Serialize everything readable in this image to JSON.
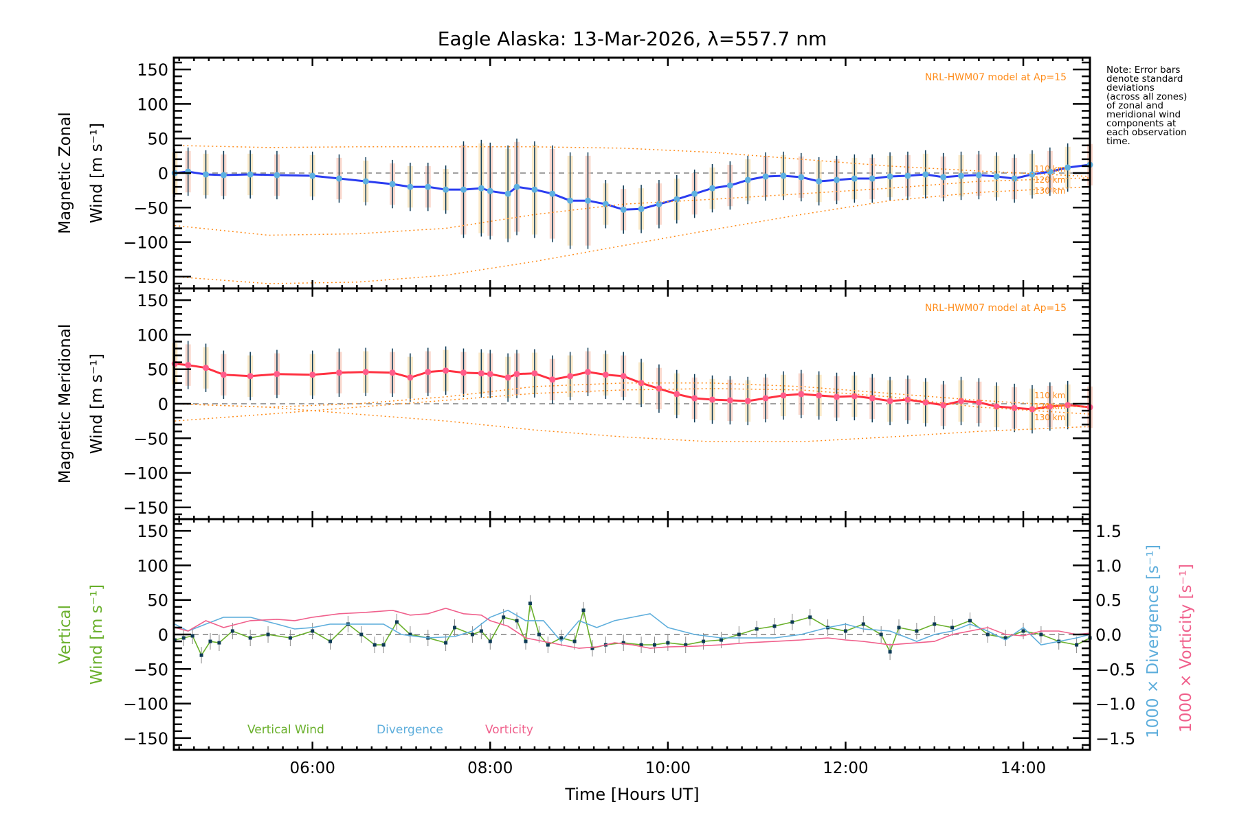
{
  "chart_data": {
    "type": "line",
    "title": "Eagle Alaska: 13-Mar-2026, λ=557.7 nm",
    "xlabel": "Time [Hours UT]",
    "xlim": [
      4.44,
      14.75
    ],
    "x_ticks": [
      6,
      8,
      10,
      12,
      14
    ],
    "x_tick_labels": [
      "06:00",
      "08:00",
      "10:00",
      "12:00",
      "14:00"
    ],
    "note": [
      "Note: Error bars",
      "denote standard",
      "deviations",
      "(across all zones)",
      "of zonal and",
      "meridional wind",
      "components at",
      "each observation",
      "time."
    ],
    "panels": [
      {
        "name": "zonal",
        "ylabel_line1": "Magnetic Zonal",
        "ylabel_line2": "Wind [m s⁻¹]",
        "ylim": [
          -167,
          167
        ],
        "y_ticks": [
          -150,
          -100,
          -50,
          0,
          50,
          100,
          150
        ],
        "model_label": "NRL-HWM07 model at Ap=15",
        "altitude_labels": [
          "110 km",
          "120 km",
          "130 km"
        ],
        "series": [
          {
            "name": "Zonal wind (mean)",
            "color": "#2a3cf0",
            "marker_color": "#5eb0e0",
            "x": [
              4.45,
              4.6,
              4.8,
              5.0,
              5.3,
              5.6,
              6.0,
              6.3,
              6.6,
              6.9,
              7.1,
              7.3,
              7.5,
              7.7,
              7.9,
              8.0,
              8.2,
              8.3,
              8.5,
              8.7,
              8.9,
              9.1,
              9.3,
              9.5,
              9.7,
              9.9,
              10.1,
              10.3,
              10.5,
              10.7,
              10.9,
              11.1,
              11.3,
              11.5,
              11.7,
              11.9,
              12.1,
              12.3,
              12.5,
              12.7,
              12.9,
              13.1,
              13.3,
              13.5,
              13.7,
              13.9,
              14.1,
              14.3,
              14.5,
              14.75
            ],
            "y": [
              0,
              2,
              -2,
              -3,
              -2,
              -3,
              -4,
              -8,
              -12,
              -16,
              -20,
              -20,
              -24,
              -24,
              -22,
              -26,
              -30,
              -20,
              -24,
              -30,
              -40,
              -40,
              -45,
              -53,
              -52,
              -45,
              -38,
              -30,
              -22,
              -18,
              -10,
              -5,
              -4,
              -6,
              -12,
              -10,
              -8,
              -8,
              -5,
              -4,
              -2,
              -6,
              -4,
              -3,
              -5,
              -8,
              -2,
              2,
              8,
              12
            ]
          },
          {
            "name": "HWM07 110 km",
            "color": "#ff8c1a",
            "style": "dotted",
            "x": [
              4.45,
              5.5,
              6.5,
              7.5,
              8.5,
              9.5,
              10.5,
              11.5,
              12.5,
              13.5,
              14.75
            ],
            "y": [
              40,
              37,
              38,
              38,
              38,
              36,
              30,
              20,
              10,
              3,
              -5
            ]
          },
          {
            "name": "HWM07 120 km",
            "color": "#ff8c1a",
            "style": "dotted",
            "x": [
              4.45,
              5.5,
              6.5,
              7.5,
              8.5,
              9.5,
              10.5,
              11.5,
              12.5,
              13.5,
              14.75
            ],
            "y": [
              -76,
              -90,
              -88,
              -80,
              -60,
              -45,
              -38,
              -30,
              -22,
              -12,
              -7
            ]
          },
          {
            "name": "HWM07 130 km",
            "color": "#ff8c1a",
            "style": "dotted",
            "x": [
              4.45,
              5.5,
              6.5,
              7.5,
              8.5,
              9.5,
              10.5,
              11.5,
              12.5,
              13.5,
              14.75
            ],
            "y": [
              -150,
              -160,
              -158,
              -148,
              -128,
              -105,
              -82,
              -60,
              -40,
              -28,
              -20
            ]
          }
        ]
      },
      {
        "name": "meridional",
        "ylabel_line1": "Magnetic Meridional",
        "ylabel_line2": "Wind [m s⁻¹]",
        "ylim": [
          -167,
          167
        ],
        "y_ticks": [
          -150,
          -100,
          -50,
          0,
          50,
          100,
          150
        ],
        "model_label": "NRL-HWM07 model at Ap=15",
        "altitude_labels": [
          "110 km",
          "120 km",
          "130 km"
        ],
        "series": [
          {
            "name": "Meridional wind (mean)",
            "color": "#ff3040",
            "marker_color": "#ff5c8a",
            "x": [
              4.45,
              4.6,
              4.8,
              5.0,
              5.3,
              5.6,
              6.0,
              6.3,
              6.6,
              6.9,
              7.1,
              7.3,
              7.5,
              7.7,
              7.9,
              8.0,
              8.2,
              8.3,
              8.5,
              8.7,
              8.9,
              9.1,
              9.3,
              9.5,
              9.7,
              9.9,
              10.1,
              10.3,
              10.5,
              10.7,
              10.9,
              11.1,
              11.3,
              11.5,
              11.7,
              11.9,
              12.1,
              12.3,
              12.5,
              12.7,
              12.9,
              13.1,
              13.3,
              13.5,
              13.7,
              13.9,
              14.1,
              14.3,
              14.5,
              14.75
            ],
            "y": [
              58,
              56,
              52,
              42,
              40,
              43,
              42,
              45,
              46,
              45,
              38,
              46,
              48,
              45,
              44,
              43,
              38,
              43,
              44,
              35,
              40,
              46,
              42,
              40,
              30,
              22,
              14,
              8,
              6,
              5,
              4,
              8,
              12,
              14,
              12,
              10,
              11,
              8,
              4,
              6,
              2,
              -2,
              4,
              2,
              -4,
              -6,
              -8,
              -4,
              -2,
              -5
            ]
          },
          {
            "name": "HWM07 110 km",
            "color": "#ff8c1a",
            "style": "dotted",
            "x": [
              4.45,
              5.5,
              6.5,
              7.5,
              8.5,
              9.5,
              10.5,
              11.5,
              12.5,
              13.5,
              14.75
            ],
            "y": [
              0,
              -5,
              0,
              10,
              25,
              30,
              30,
              25,
              15,
              5,
              -5
            ]
          },
          {
            "name": "HWM07 120 km",
            "color": "#ff8c1a",
            "style": "dotted",
            "x": [
              4.45,
              5.5,
              6.5,
              7.5,
              8.5,
              9.5,
              10.5,
              11.5,
              12.5,
              13.5,
              14.75
            ],
            "y": [
              -25,
              -15,
              -5,
              5,
              15,
              20,
              22,
              20,
              10,
              -5,
              -15
            ]
          },
          {
            "name": "HWM07 130 km",
            "color": "#ff8c1a",
            "style": "dotted",
            "x": [
              4.45,
              5.5,
              6.5,
              7.5,
              8.5,
              9.5,
              10.5,
              11.5,
              12.5,
              13.5,
              14.75
            ],
            "y": [
              0,
              -5,
              -15,
              -25,
              -38,
              -48,
              -55,
              -55,
              -48,
              -40,
              -33
            ]
          }
        ]
      },
      {
        "name": "vertical",
        "ylabel_line1": "Vertical",
        "ylabel_line2": "Wind [m s⁻¹]",
        "ylabel_color": "#6ab02c",
        "ylim": [
          -167,
          167
        ],
        "y_ticks": [
          -150,
          -100,
          -50,
          0,
          50,
          100,
          150
        ],
        "right_axis": {
          "ylim": [
            -1.67,
            1.67
          ],
          "y_ticks": [
            -1.5,
            -1.0,
            -0.5,
            0.0,
            0.5,
            1.0,
            1.5
          ],
          "y_tick_labels": [
            "−1.5",
            "−1.0",
            "−0.5",
            "0.0",
            "0.5",
            "1.0",
            "1.5"
          ],
          "label_divergence": "1000 × Divergence [s⁻¹]",
          "label_vorticity": "1000 × Vorticity [s⁻¹]"
        },
        "legend": [
          "Vertical Wind",
          "Divergence",
          "Vorticity"
        ],
        "series": [
          {
            "name": "Vertical Wind",
            "color": "#6ab02c",
            "marker_color": "#0d3a55",
            "x": [
              4.45,
              4.55,
              4.65,
              4.75,
              4.85,
              4.95,
              5.1,
              5.3,
              5.5,
              5.75,
              6.0,
              6.2,
              6.4,
              6.55,
              6.7,
              6.8,
              6.95,
              7.1,
              7.3,
              7.5,
              7.6,
              7.8,
              7.9,
              8.0,
              8.15,
              8.3,
              8.4,
              8.45,
              8.55,
              8.65,
              8.8,
              8.95,
              9.05,
              9.15,
              9.3,
              9.5,
              9.7,
              9.85,
              10.0,
              10.2,
              10.4,
              10.6,
              10.8,
              11.0,
              11.2,
              11.4,
              11.6,
              11.8,
              12.0,
              12.2,
              12.4,
              12.5,
              12.6,
              12.8,
              13.0,
              13.2,
              13.4,
              13.6,
              13.8,
              14.0,
              14.2,
              14.4,
              14.6,
              14.75
            ],
            "y": [
              -8,
              -5,
              -2,
              -30,
              -10,
              -12,
              5,
              -5,
              0,
              -5,
              5,
              -10,
              15,
              0,
              -15,
              -15,
              18,
              0,
              -5,
              -12,
              10,
              0,
              5,
              -10,
              25,
              20,
              -10,
              45,
              0,
              -15,
              -5,
              -10,
              35,
              -20,
              -15,
              -12,
              -15,
              -15,
              -12,
              -15,
              -10,
              -8,
              0,
              8,
              12,
              18,
              25,
              10,
              5,
              15,
              0,
              -25,
              10,
              5,
              15,
              10,
              20,
              0,
              -5,
              5,
              0,
              -10,
              -15,
              -5
            ]
          },
          {
            "name": "Divergence",
            "color": "#5eaedc",
            "axis": "right",
            "x": [
              4.45,
              4.6,
              4.8,
              5.0,
              5.3,
              5.6,
              5.8,
              6.0,
              6.2,
              6.5,
              6.8,
              7.0,
              7.3,
              7.6,
              7.8,
              8.0,
              8.2,
              8.4,
              8.6,
              8.8,
              9.0,
              9.2,
              9.4,
              9.6,
              9.8,
              10.0,
              10.3,
              10.6,
              10.9,
              11.2,
              11.5,
              11.8,
              12.0,
              12.2,
              12.5,
              12.8,
              13.0,
              13.2,
              13.4,
              13.6,
              13.8,
              14.0,
              14.2,
              14.4,
              14.6,
              14.75
            ],
            "y": [
              0.15,
              0.05,
              0.15,
              0.25,
              0.25,
              0.15,
              0.08,
              0.1,
              0.15,
              0.15,
              0.15,
              0.0,
              -0.05,
              -0.03,
              0.05,
              0.25,
              0.35,
              0.2,
              0.2,
              -0.1,
              0.2,
              0.1,
              0.2,
              0.25,
              0.3,
              0.1,
              0.0,
              -0.05,
              -0.05,
              -0.05,
              0.0,
              0.1,
              0.15,
              0.08,
              0.05,
              -0.1,
              0.0,
              0.05,
              0.15,
              0.05,
              -0.08,
              0.1,
              -0.15,
              -0.1,
              -0.05,
              0.0
            ]
          },
          {
            "name": "Vorticity",
            "color": "#f0608c",
            "axis": "right",
            "x": [
              4.45,
              4.6,
              4.8,
              5.0,
              5.3,
              5.6,
              5.8,
              6.0,
              6.3,
              6.6,
              6.9,
              7.1,
              7.3,
              7.5,
              7.7,
              7.9,
              8.0,
              8.2,
              8.4,
              8.6,
              8.8,
              9.0,
              9.2,
              9.4,
              9.6,
              9.8,
              10.0,
              10.3,
              10.6,
              10.9,
              11.2,
              11.5,
              11.8,
              12.0,
              12.2,
              12.5,
              12.8,
              13.0,
              13.2,
              13.4,
              13.6,
              13.8,
              14.0,
              14.2,
              14.4,
              14.6,
              14.75
            ],
            "y": [
              0.1,
              0.05,
              0.2,
              0.1,
              0.2,
              0.22,
              0.2,
              0.25,
              0.3,
              0.32,
              0.35,
              0.28,
              0.3,
              0.38,
              0.3,
              0.28,
              0.2,
              0.12,
              -0.05,
              -0.1,
              -0.15,
              -0.2,
              -0.18,
              -0.12,
              -0.15,
              -0.2,
              -0.18,
              -0.17,
              -0.15,
              -0.12,
              -0.1,
              -0.08,
              -0.05,
              -0.08,
              -0.1,
              -0.15,
              -0.12,
              -0.1,
              0.0,
              0.05,
              0.1,
              0.0,
              -0.02,
              0.05,
              0.05,
              0.0,
              0.02
            ]
          }
        ]
      }
    ]
  }
}
